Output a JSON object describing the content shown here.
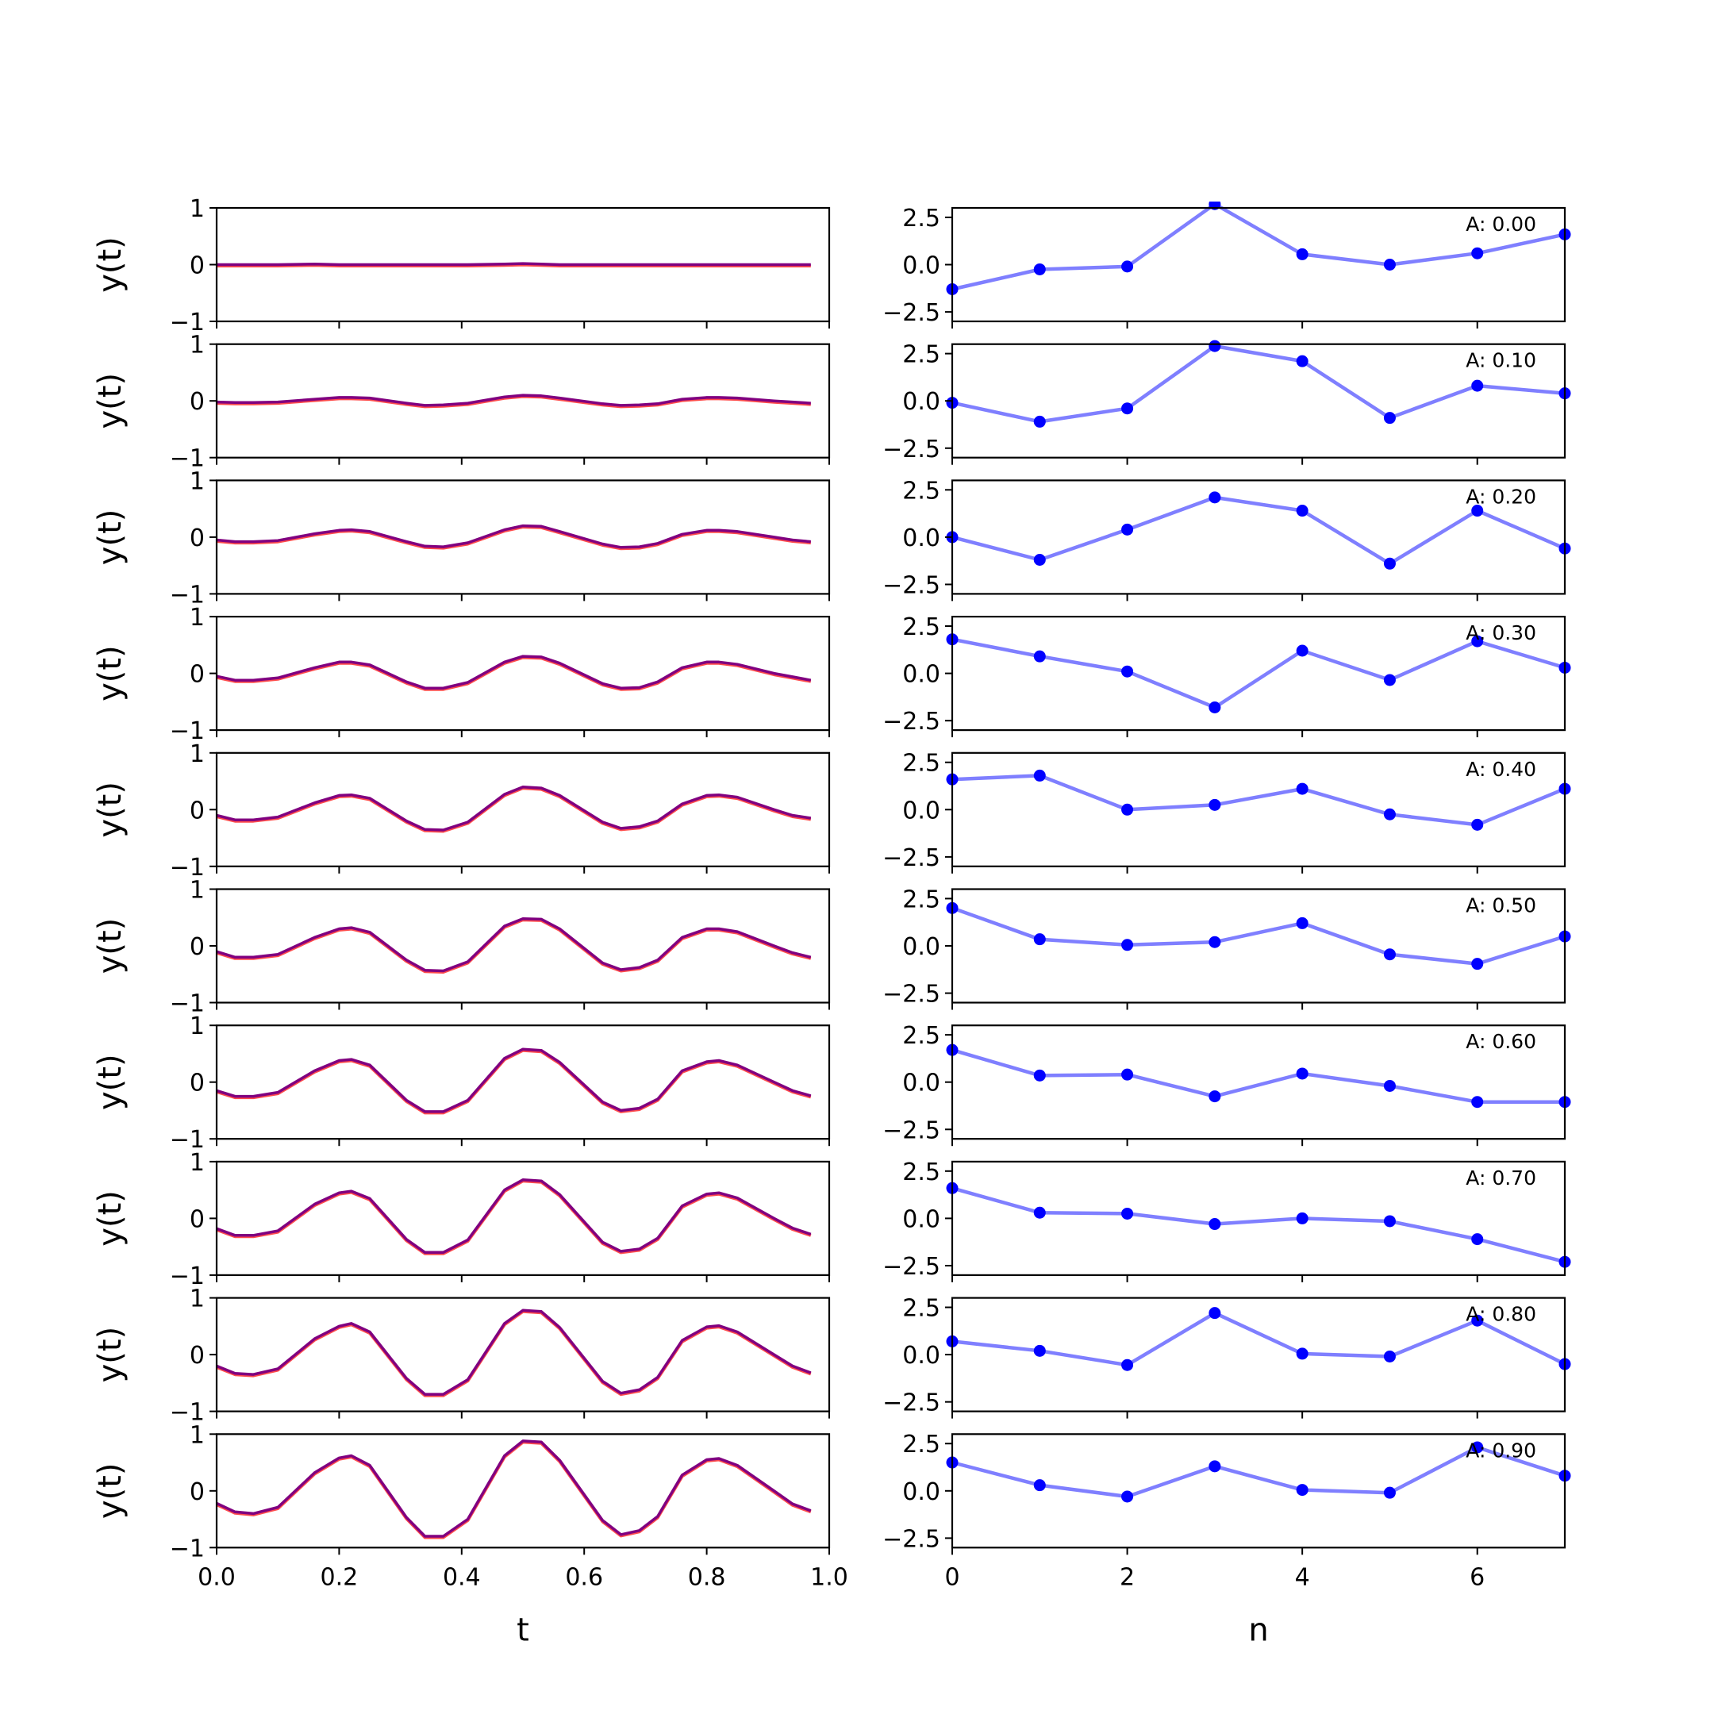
{
  "chart_data": [
    {
      "panel": "left",
      "type": "line",
      "xlabel": "t",
      "ylabel": "y(t)",
      "xlim": [
        0,
        1
      ],
      "ylim": [
        -1,
        1
      ],
      "xticks": [
        0.0,
        0.2,
        0.4,
        0.6,
        0.8,
        1.0
      ],
      "xtick_labels": [
        "0.0",
        "0.2",
        "0.4",
        "0.6",
        "0.8",
        "1.0"
      ],
      "yticks": [
        -1,
        0,
        1
      ],
      "ytick_labels": [
        "−1",
        "0",
        "1"
      ],
      "colors": {
        "model": "#0000ff",
        "true": "#ff0000",
        "overlap": "#800080"
      },
      "x": [
        0.0,
        0.03,
        0.06,
        0.1,
        0.16,
        0.2,
        0.22,
        0.25,
        0.31,
        0.34,
        0.37,
        0.41,
        0.47,
        0.5,
        0.53,
        0.56,
        0.63,
        0.66,
        0.69,
        0.72,
        0.76,
        0.8,
        0.82,
        0.85,
        0.91,
        0.94,
        0.97
      ],
      "rows": [
        {
          "A": 0.0,
          "values": [
            0.0,
            0.0,
            0.0,
            0.0,
            0.01,
            0.0,
            0.0,
            0.0,
            0.0,
            0.0,
            0.0,
            0.0,
            0.01,
            0.02,
            0.01,
            0.0,
            0.0,
            0.0,
            0.0,
            0.0,
            0.0,
            0.0,
            0.0,
            0.0,
            0.0,
            0.0,
            0.0
          ]
        },
        {
          "A": 0.1,
          "values": [
            -0.02,
            -0.03,
            -0.03,
            -0.02,
            0.03,
            0.06,
            0.06,
            0.05,
            -0.04,
            -0.08,
            -0.07,
            -0.04,
            0.07,
            0.1,
            0.09,
            0.05,
            -0.05,
            -0.08,
            -0.07,
            -0.05,
            0.03,
            0.06,
            0.06,
            0.05,
            0.0,
            -0.02,
            -0.04
          ]
        },
        {
          "A": 0.2,
          "values": [
            -0.05,
            -0.08,
            -0.08,
            -0.06,
            0.06,
            0.12,
            0.13,
            0.1,
            -0.08,
            -0.16,
            -0.17,
            -0.1,
            0.13,
            0.2,
            0.19,
            0.1,
            -0.12,
            -0.18,
            -0.17,
            -0.11,
            0.05,
            0.12,
            0.12,
            0.1,
            0.0,
            -0.05,
            -0.08
          ]
        },
        {
          "A": 0.3,
          "values": [
            -0.05,
            -0.12,
            -0.12,
            -0.08,
            0.1,
            0.2,
            0.2,
            0.15,
            -0.15,
            -0.26,
            -0.26,
            -0.16,
            0.2,
            0.3,
            0.29,
            0.18,
            -0.18,
            -0.26,
            -0.25,
            -0.15,
            0.1,
            0.2,
            0.2,
            0.16,
            0.0,
            -0.06,
            -0.12
          ]
        },
        {
          "A": 0.4,
          "values": [
            -0.1,
            -0.18,
            -0.18,
            -0.13,
            0.12,
            0.25,
            0.26,
            0.2,
            -0.2,
            -0.35,
            -0.36,
            -0.22,
            0.27,
            0.4,
            0.38,
            0.25,
            -0.22,
            -0.33,
            -0.3,
            -0.2,
            0.1,
            0.25,
            0.26,
            0.22,
            0.0,
            -0.1,
            -0.15
          ]
        },
        {
          "A": 0.5,
          "values": [
            -0.1,
            -0.2,
            -0.2,
            -0.15,
            0.15,
            0.3,
            0.32,
            0.24,
            -0.25,
            -0.43,
            -0.44,
            -0.28,
            0.35,
            0.48,
            0.47,
            0.3,
            -0.3,
            -0.42,
            -0.38,
            -0.25,
            0.15,
            0.3,
            0.3,
            0.25,
            0.0,
            -0.12,
            -0.2
          ]
        },
        {
          "A": 0.6,
          "values": [
            -0.15,
            -0.25,
            -0.25,
            -0.18,
            0.2,
            0.38,
            0.4,
            0.3,
            -0.32,
            -0.52,
            -0.52,
            -0.32,
            0.42,
            0.58,
            0.56,
            0.35,
            -0.35,
            -0.5,
            -0.46,
            -0.3,
            0.2,
            0.36,
            0.38,
            0.3,
            0.0,
            -0.15,
            -0.24
          ]
        },
        {
          "A": 0.7,
          "values": [
            -0.18,
            -0.3,
            -0.3,
            -0.22,
            0.25,
            0.45,
            0.48,
            0.35,
            -0.37,
            -0.6,
            -0.6,
            -0.38,
            0.5,
            0.68,
            0.66,
            0.42,
            -0.42,
            -0.58,
            -0.54,
            -0.35,
            0.22,
            0.43,
            0.45,
            0.36,
            0.0,
            -0.17,
            -0.28
          ]
        },
        {
          "A": 0.8,
          "values": [
            -0.2,
            -0.33,
            -0.35,
            -0.25,
            0.28,
            0.5,
            0.55,
            0.4,
            -0.42,
            -0.7,
            -0.7,
            -0.44,
            0.55,
            0.78,
            0.76,
            0.48,
            -0.47,
            -0.68,
            -0.62,
            -0.4,
            0.25,
            0.49,
            0.51,
            0.4,
            0.0,
            -0.2,
            -0.32
          ]
        },
        {
          "A": 0.9,
          "values": [
            -0.22,
            -0.37,
            -0.4,
            -0.29,
            0.32,
            0.58,
            0.62,
            0.45,
            -0.47,
            -0.8,
            -0.8,
            -0.5,
            0.62,
            0.88,
            0.86,
            0.54,
            -0.52,
            -0.77,
            -0.7,
            -0.45,
            0.28,
            0.55,
            0.57,
            0.45,
            0.0,
            -0.23,
            -0.35
          ]
        }
      ]
    },
    {
      "panel": "right",
      "type": "line",
      "xlabel": "n",
      "xlim": [
        0,
        7
      ],
      "ylim": [
        -3,
        3
      ],
      "xticks": [
        0,
        2,
        4,
        6
      ],
      "xtick_labels": [
        "0",
        "2",
        "4",
        "6"
      ],
      "yticks": [
        2.5,
        0.0,
        -2.5
      ],
      "ytick_labels": [
        "2.5",
        "0.0",
        "−2.5"
      ],
      "color": "#0000ff",
      "x": [
        0,
        1,
        2,
        3,
        4,
        5,
        6,
        7
      ],
      "rows": [
        {
          "A": 0.0,
          "annotation": "A: 0.00",
          "values": [
            -1.3,
            -0.25,
            -0.1,
            3.2,
            0.55,
            0.0,
            0.6,
            1.6
          ]
        },
        {
          "A": 0.1,
          "annotation": "A: 0.10",
          "values": [
            -0.1,
            -1.1,
            -0.4,
            2.9,
            2.1,
            -0.9,
            0.8,
            0.4
          ]
        },
        {
          "A": 0.2,
          "annotation": "A: 0.20",
          "values": [
            0.0,
            -1.2,
            0.4,
            2.1,
            1.4,
            -1.4,
            1.4,
            -0.6
          ]
        },
        {
          "A": 0.3,
          "annotation": "A: 0.30",
          "values": [
            1.8,
            0.9,
            0.1,
            -1.8,
            1.2,
            -0.35,
            1.7,
            0.3
          ]
        },
        {
          "A": 0.4,
          "annotation": "A: 0.40",
          "values": [
            1.6,
            1.8,
            0.0,
            0.25,
            1.1,
            -0.25,
            -0.8,
            1.1
          ]
        },
        {
          "A": 0.5,
          "annotation": "A: 0.50",
          "values": [
            2.0,
            0.35,
            0.05,
            0.2,
            1.2,
            -0.45,
            -0.95,
            0.5
          ]
        },
        {
          "A": 0.6,
          "annotation": "A: 0.60",
          "values": [
            1.7,
            0.35,
            0.4,
            -0.75,
            0.45,
            -0.2,
            -1.05,
            -1.05
          ]
        },
        {
          "A": 0.7,
          "annotation": "A: 0.70",
          "values": [
            1.6,
            0.3,
            0.25,
            -0.3,
            0.0,
            -0.15,
            -1.1,
            -2.3
          ]
        },
        {
          "A": 0.8,
          "annotation": "A: 0.80",
          "values": [
            0.7,
            0.2,
            -0.55,
            2.2,
            0.05,
            -0.1,
            1.8,
            -0.5
          ]
        },
        {
          "A": 0.9,
          "annotation": "A: 0.90",
          "values": [
            1.5,
            0.3,
            -0.3,
            1.3,
            0.05,
            -0.1,
            2.3,
            0.8
          ]
        }
      ]
    }
  ]
}
